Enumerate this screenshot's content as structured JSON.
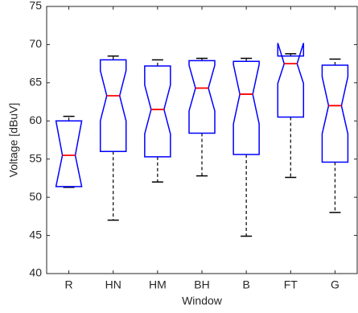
{
  "chart_data": {
    "type": "boxplot",
    "xlabel": "Window",
    "ylabel": "Voltage [dBuV]",
    "categories": [
      "R",
      "HN",
      "HM",
      "BH",
      "B",
      "FT",
      "G"
    ],
    "whisker_low": [
      51.3,
      47,
      52,
      52.8,
      44.9,
      52.6,
      48
    ],
    "q1": [
      51.4,
      56,
      55.3,
      58.4,
      55.6,
      60.5,
      54.6
    ],
    "median": [
      55.5,
      63.3,
      61.5,
      64.3,
      63.5,
      67.5,
      62
    ],
    "q3": [
      60,
      68,
      67.2,
      67.9,
      67.8,
      68.5,
      67.3
    ],
    "whisker_high": [
      60.6,
      68.5,
      68,
      68.2,
      68.2,
      68.8,
      68.1
    ],
    "notch_low": [
      51.4,
      60,
      58.3,
      61.3,
      59.6,
      64.9,
      58.3
    ],
    "notch_high": [
      60,
      66.6,
      64.7,
      67.3,
      67.4,
      70.2,
      65.8
    ],
    "box_color": "#0000ff",
    "median_color": "#ff0000",
    "whisker_color": "#000000",
    "ylim": [
      40,
      75
    ],
    "yticks": [
      40,
      45,
      50,
      55,
      60,
      65,
      70,
      75
    ]
  }
}
